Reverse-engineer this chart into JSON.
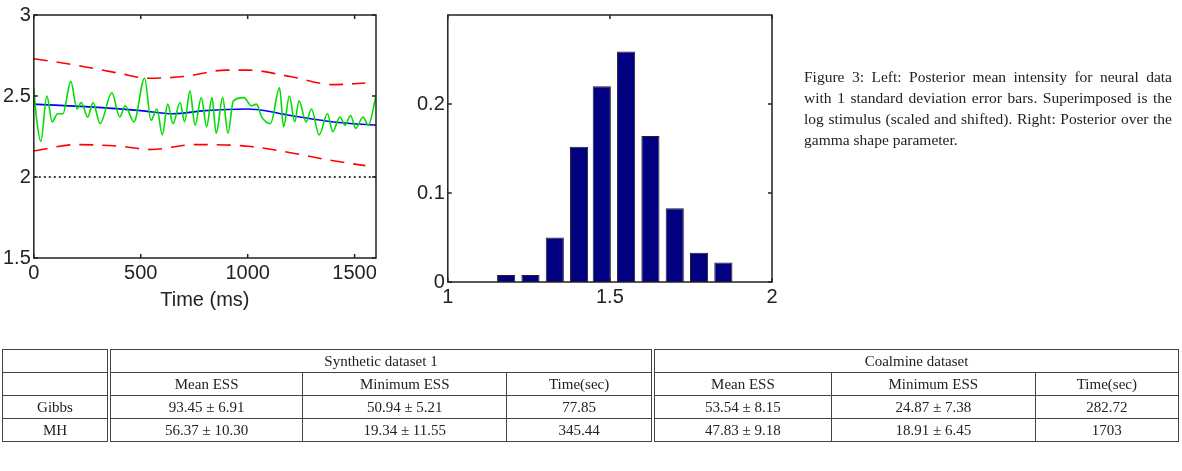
{
  "chart_data": [
    {
      "type": "line",
      "xlabel": "Time (ms)",
      "xlim": [
        0,
        1600
      ],
      "xticks": [
        0,
        500,
        1000,
        1500
      ],
      "ylim": [
        1.5,
        3
      ],
      "yticks": [
        1.5,
        2,
        2.5,
        3
      ],
      "marker": "none",
      "series": [
        {
          "color": "#00dd00",
          "x": [
            0,
            12,
            33,
            61,
            86,
            111,
            136,
            173,
            202,
            222,
            252,
            277,
            310,
            365,
            402,
            427,
            468,
            518,
            548,
            576,
            601,
            626,
            651,
            684,
            705,
            730,
            754,
            783,
            808,
            833,
            853,
            883,
            908,
            933,
            983,
            1016,
            1041,
            1066,
            1107,
            1149,
            1168,
            1195,
            1220,
            1240,
            1273,
            1298,
            1334,
            1373,
            1398,
            1431,
            1456,
            1481,
            1505,
            1539,
            1564,
            1600
          ],
          "values": [
            2.55,
            2.37,
            2.22,
            2.5,
            2.34,
            2.39,
            2.39,
            2.59,
            2.42,
            2.46,
            2.37,
            2.46,
            2.33,
            2.52,
            2.37,
            2.44,
            2.34,
            2.61,
            2.35,
            2.42,
            2.26,
            2.45,
            2.33,
            2.46,
            2.34,
            2.53,
            2.32,
            2.49,
            2.31,
            2.49,
            2.27,
            2.49,
            2.27,
            2.47,
            2.49,
            2.44,
            2.45,
            2.37,
            2.33,
            2.55,
            2.31,
            2.5,
            2.34,
            2.47,
            2.34,
            2.42,
            2.26,
            2.39,
            2.28,
            2.37,
            2.32,
            2.38,
            2.3,
            2.37,
            2.32,
            2.5
          ]
        },
        {
          "color": "#0000ff",
          "x": [
            0,
            300,
            500,
            650,
            800,
            1000,
            1200,
            1400,
            1600
          ],
          "values": [
            2.45,
            2.43,
            2.41,
            2.39,
            2.41,
            2.42,
            2.38,
            2.34,
            2.32
          ]
        },
        {
          "color": "#ff0000",
          "line_style": "dashed",
          "x": [
            0,
            200,
            400,
            530,
            700,
            900,
            1000,
            1200,
            1400,
            1550
          ],
          "values": [
            2.73,
            2.69,
            2.64,
            2.61,
            2.62,
            2.66,
            2.66,
            2.62,
            2.57,
            2.58
          ]
        },
        {
          "color": "#ff0000",
          "line_style": "dashed",
          "x": [
            0,
            200,
            400,
            550,
            750,
            1000,
            1200,
            1400,
            1550
          ],
          "values": [
            2.16,
            2.2,
            2.19,
            2.17,
            2.2,
            2.19,
            2.15,
            2.1,
            2.07
          ]
        },
        {
          "color": "#000000",
          "line_style": "dotted",
          "x": [
            0,
            1600
          ],
          "values": [
            2,
            2
          ]
        }
      ]
    },
    {
      "type": "histogram",
      "color": "#000080",
      "bins": [
        1.14,
        1.22,
        1.29,
        1.37,
        1.44,
        1.51,
        1.59,
        1.66,
        1.74,
        1.81,
        1.89
      ],
      "values": [
        0.008,
        0.008,
        0.05,
        0.152,
        0.22,
        0.259,
        0.164,
        0.083,
        0.033,
        0.022
      ],
      "xlim": [
        1,
        2
      ],
      "xticks": [
        1,
        1.5,
        2
      ],
      "ylim": [
        0,
        0.3
      ],
      "yticks": [
        0,
        0.1,
        0.2
      ],
      "annotations": [
        "Figure 3: Left: Posterior mean intensity for neural data with 1 standard deviation error bars. Superimposed is the log stimulus (scaled and shifted). Right: Posterior over the gamma shape parameter."
      ]
    },
    {
      "type": "other",
      "annotations": [
        "Synthetic dataset 1",
        "Coalmine dataset"
      ],
      "categories": [
        "Mean ESS",
        "Minimum ESS",
        "Time(sec)",
        "Mean ESS",
        "Minimum ESS",
        "Time(sec)"
      ],
      "y_categories": [
        "Gibbs",
        "MH"
      ],
      "cell_labels": [
        [
          "93.45 ± 6.91",
          "50.94 ± 5.21",
          "77.85",
          "53.54 ± 8.15",
          "24.87 ± 7.38",
          "282.72"
        ],
        [
          "56.37 ± 10.30",
          "19.34 ± 11.55",
          "345.44",
          "47.83 ± 9.18",
          "18.91 ± 6.45",
          "1703"
        ]
      ]
    }
  ]
}
